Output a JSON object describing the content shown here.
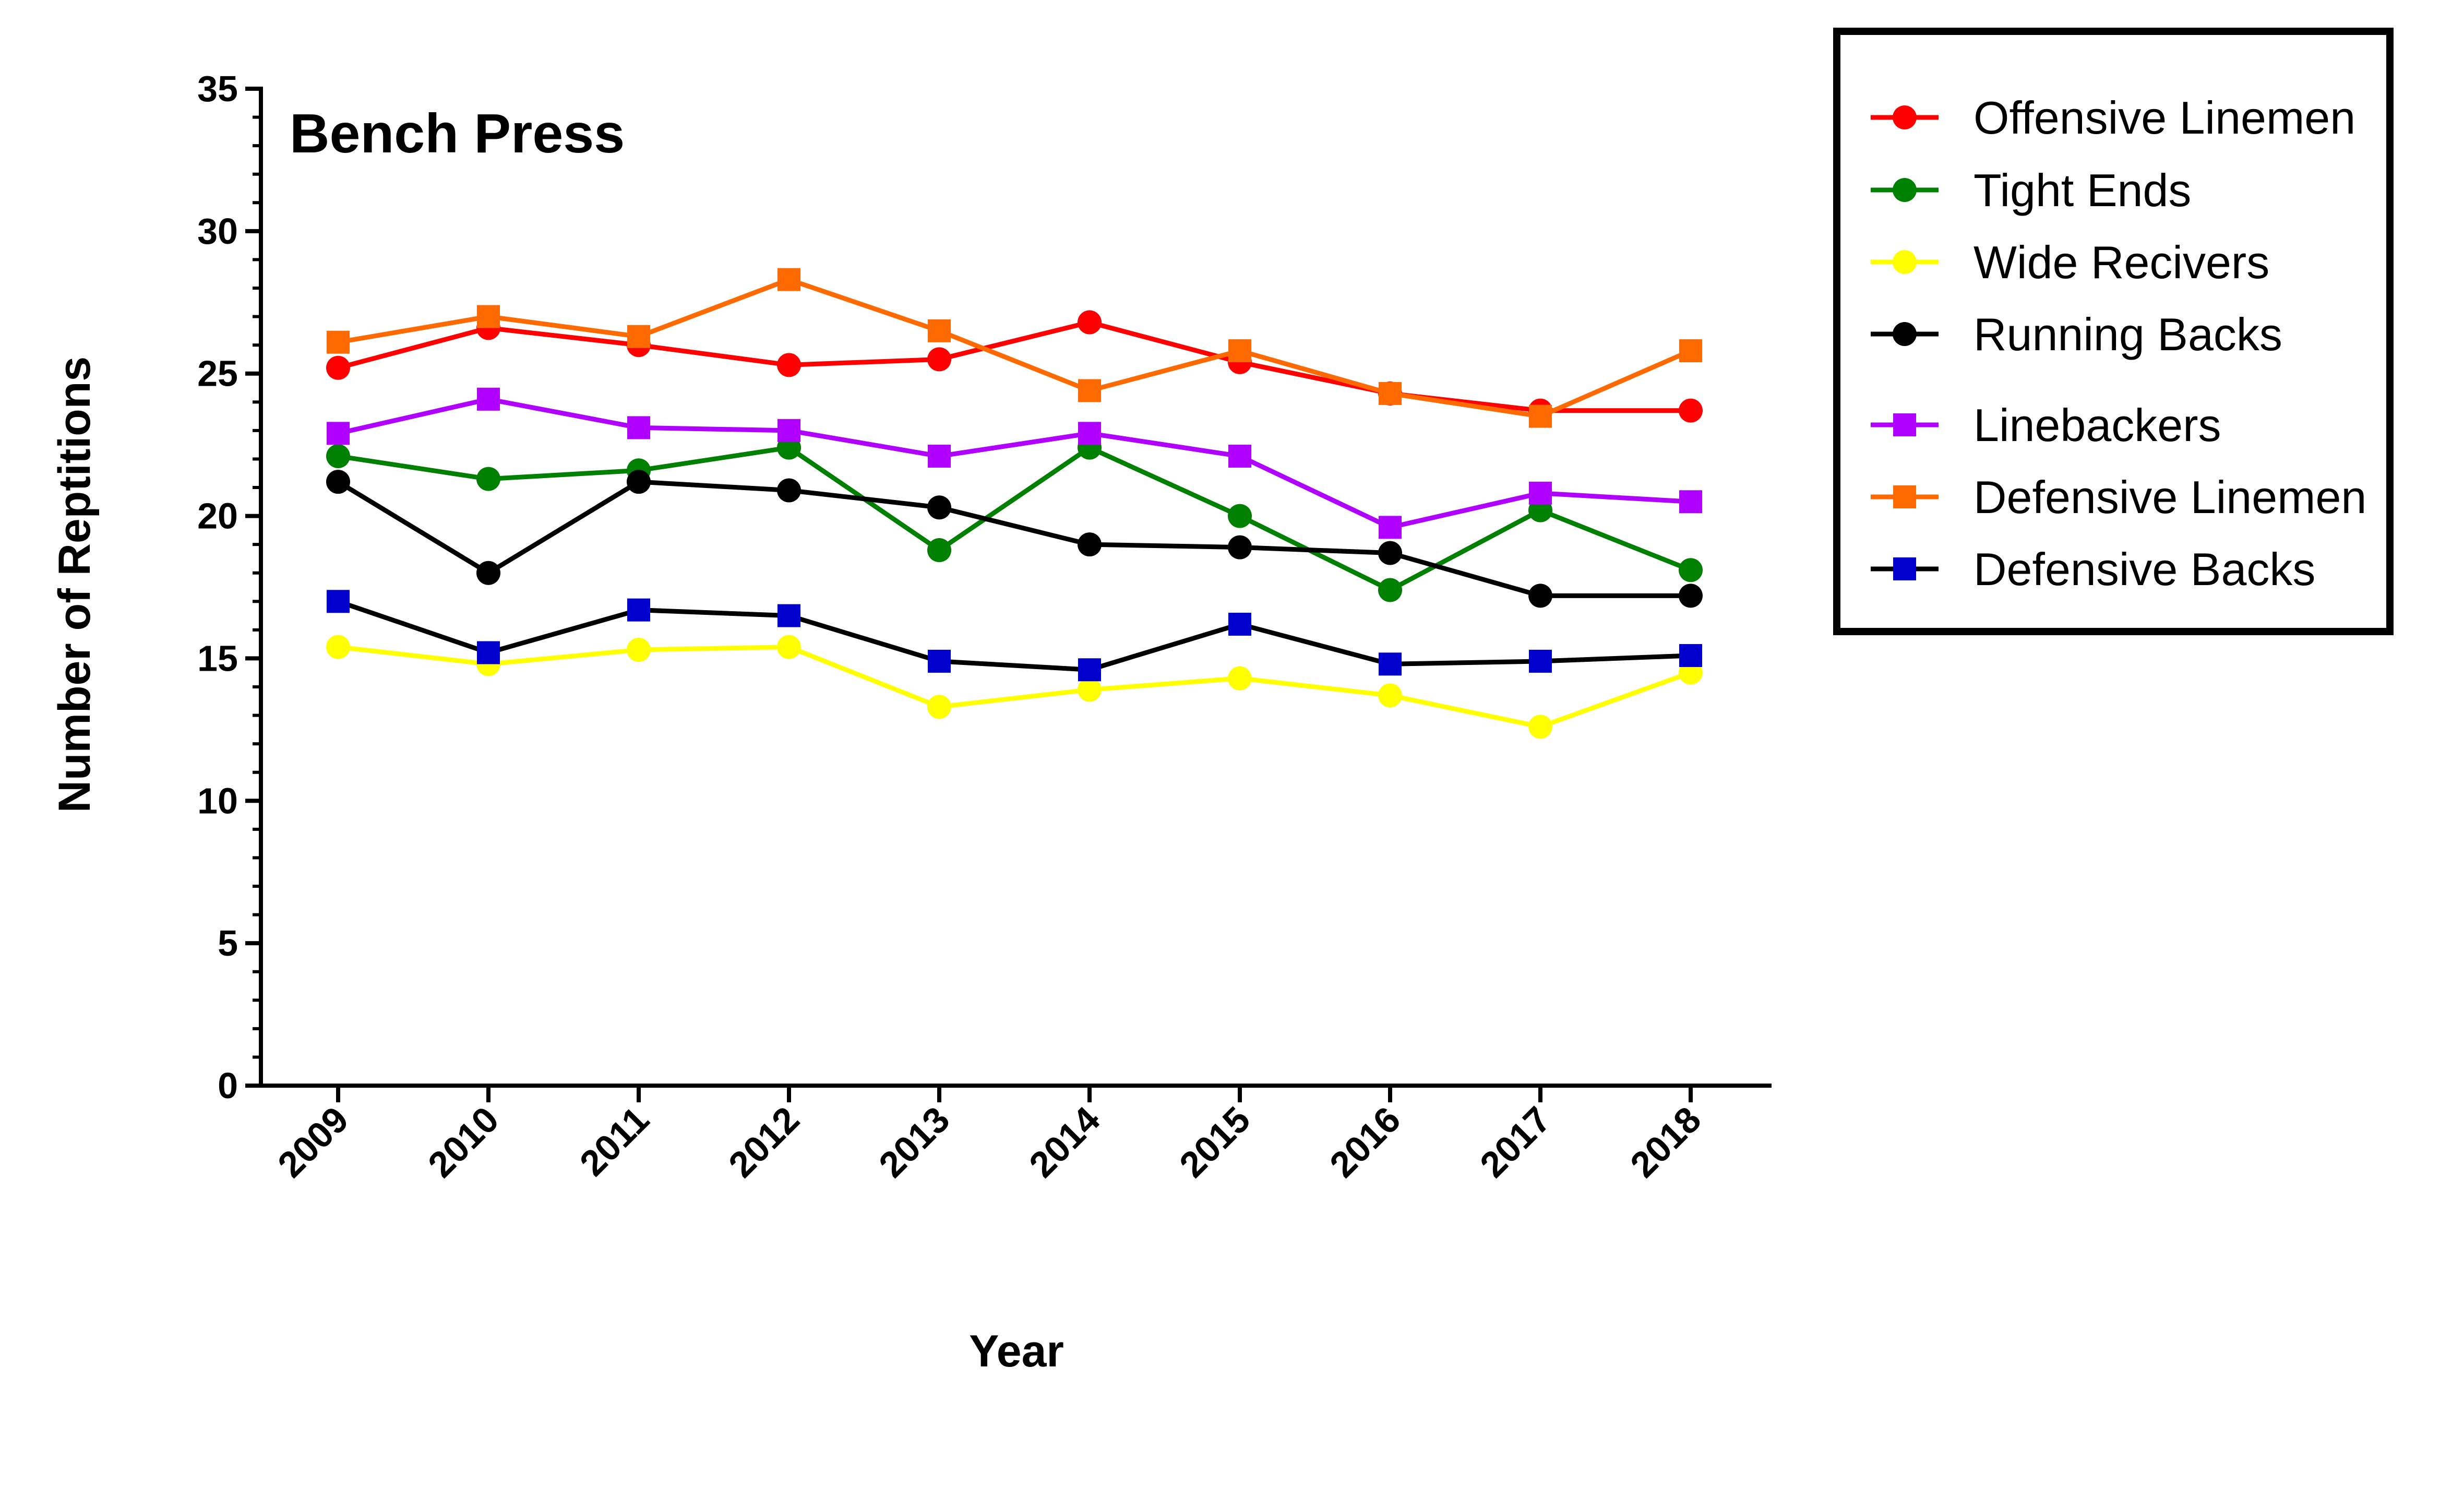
{
  "chart_data": {
    "type": "line",
    "title": "Bench Press",
    "xlabel": "Year",
    "ylabel": "Number of Reptitions",
    "ylim": [
      0,
      35
    ],
    "yticks": [
      "0",
      "5",
      "10",
      "15",
      "20",
      "25",
      "30",
      "35"
    ],
    "x": [
      "2009",
      "2010",
      "2011",
      "2012",
      "2013",
      "2014",
      "2015",
      "2016",
      "2017",
      "2018"
    ],
    "legend_position": "outside-right",
    "grid": false,
    "series": [
      {
        "name": "Offensive Linemen",
        "color": "#ff0000",
        "marker": "circle",
        "values": [
          25.2,
          26.6,
          26.0,
          25.3,
          25.5,
          26.8,
          25.4,
          24.3,
          23.7,
          23.7
        ]
      },
      {
        "name": "Tight Ends",
        "color": "#008000",
        "marker": "circle",
        "values": [
          22.1,
          21.3,
          21.6,
          22.4,
          18.8,
          22.4,
          20.0,
          17.4,
          20.2,
          18.1
        ]
      },
      {
        "name": "Wide Recivers",
        "color": "#ffff00",
        "marker": "circle",
        "values": [
          15.4,
          14.8,
          15.3,
          15.4,
          13.3,
          13.9,
          14.3,
          13.7,
          12.6,
          14.5
        ]
      },
      {
        "name": "Running Backs",
        "color": "#000000",
        "marker": "circle",
        "values": [
          21.2,
          18.0,
          21.2,
          20.9,
          20.3,
          19.0,
          18.9,
          18.7,
          17.2,
          17.2
        ]
      },
      {
        "name": "Linebackers",
        "color": "#b000ff",
        "marker": "square",
        "values": [
          22.9,
          24.1,
          23.1,
          23.0,
          22.1,
          22.9,
          22.1,
          19.6,
          20.8,
          20.5
        ]
      },
      {
        "name": "Defensive Linemen",
        "color": "#ff6a00",
        "marker": "square",
        "values": [
          26.1,
          27.0,
          26.3,
          28.3,
          26.5,
          24.4,
          25.8,
          24.3,
          23.5,
          25.8
        ]
      },
      {
        "name": "Defensive Backs",
        "color": "#0000cc",
        "line_color": "#000000",
        "marker": "square",
        "values": [
          17.0,
          15.2,
          16.7,
          16.5,
          14.9,
          14.6,
          16.2,
          14.8,
          14.9,
          15.1
        ]
      }
    ]
  }
}
